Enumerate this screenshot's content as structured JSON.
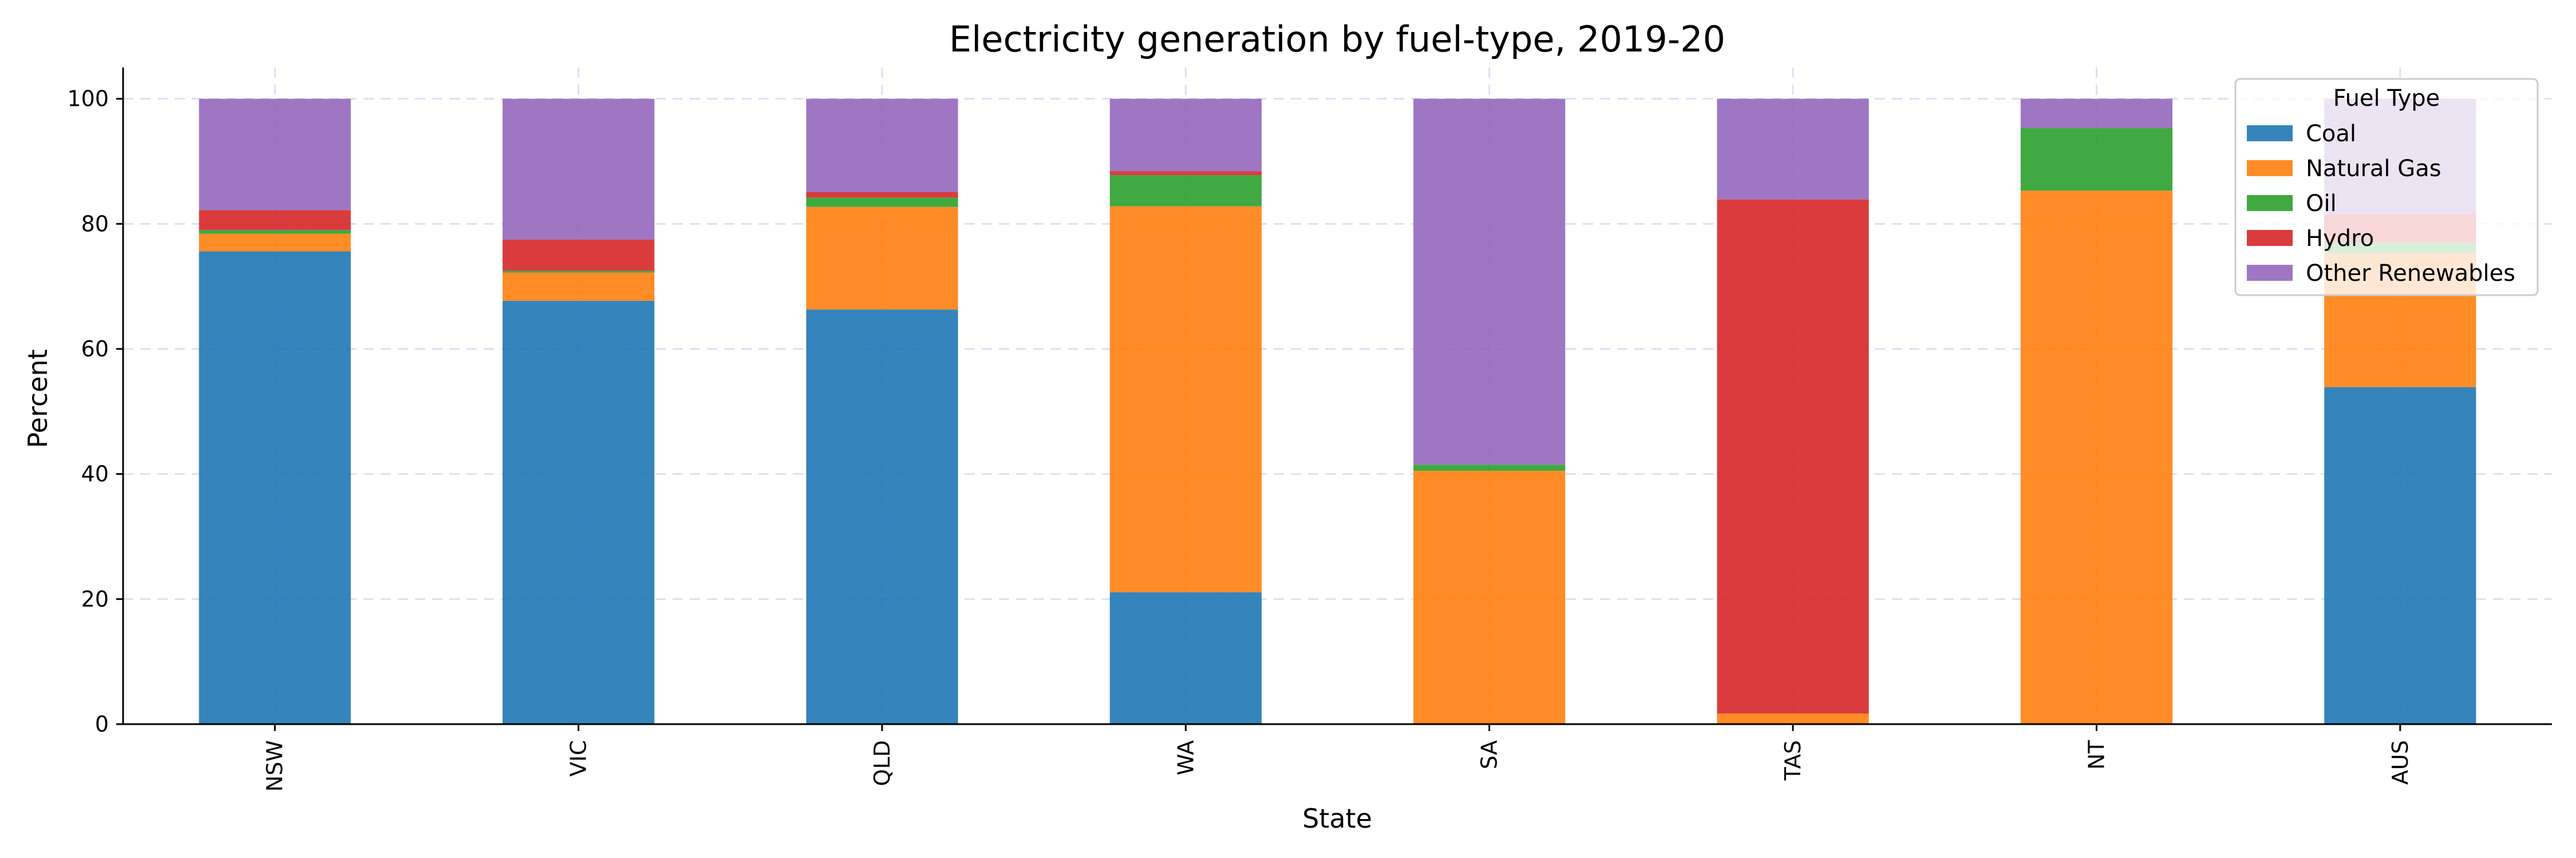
{
  "chart_data": {
    "type": "bar",
    "stacked": true,
    "title": "Electricity generation by fuel-type, 2019-20",
    "xlabel": "State",
    "ylabel": "Percent",
    "ylim": [
      0,
      105
    ],
    "yticks": [
      0,
      20,
      40,
      60,
      80,
      100
    ],
    "grid": true,
    "categories": [
      "NSW",
      "VIC",
      "QLD",
      "WA",
      "SA",
      "TAS",
      "NT",
      "AUS"
    ],
    "series": [
      {
        "name": "Coal",
        "color": "#1f77b4",
        "values": [
          75.6,
          67.7,
          66.3,
          21.1,
          0,
          0,
          0,
          53.9
        ]
      },
      {
        "name": "Natural Gas",
        "color": "#ff7f0e",
        "values": [
          2.8,
          4.5,
          16.4,
          61.7,
          40.5,
          1.7,
          85.3,
          21.4
        ]
      },
      {
        "name": "Oil",
        "color": "#2ca02c",
        "values": [
          0.6,
          0.3,
          1.5,
          5.0,
          1.0,
          0,
          10.0,
          1.7
        ]
      },
      {
        "name": "Hydro",
        "color": "#d62728",
        "values": [
          3.2,
          5.0,
          0.9,
          0.6,
          0,
          82.2,
          0,
          4.5
        ]
      },
      {
        "name": "Other Renewables",
        "color": "#9467bd",
        "values": [
          17.8,
          22.5,
          14.9,
          11.6,
          58.5,
          16.1,
          4.7,
          18.5
        ]
      }
    ],
    "legend": {
      "title": "Fuel Type",
      "position": "top-right"
    }
  }
}
